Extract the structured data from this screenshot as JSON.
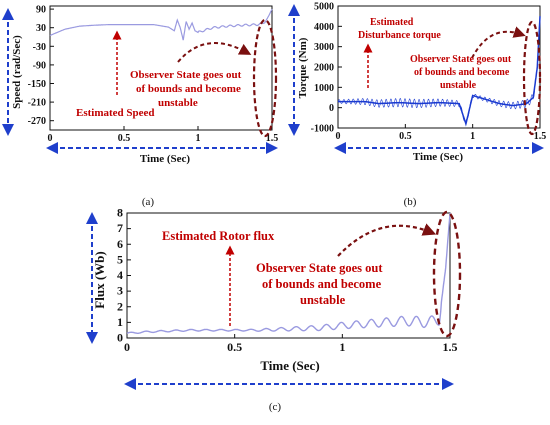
{
  "chart_data": [
    {
      "type": "line",
      "panel": "(a)",
      "xlabel": "Time (Sec)",
      "ylabel": "Speed (rad/Sec)",
      "xlim": [
        0,
        1.5
      ],
      "ylim": [
        -300,
        100
      ],
      "x_ticks": [
        "0",
        "0.5",
        "1",
        "1.5"
      ],
      "y_ticks": [
        "90",
        "30",
        "-30",
        "-90",
        "-150",
        "-210",
        "-270"
      ],
      "annotations": [
        "Estimated Speed",
        "Observer State  goes out of bounds and become unstable"
      ],
      "series": [
        {
          "color": "#9a9ae0",
          "x": [
            0,
            0.1,
            0.2,
            0.3,
            0.4,
            0.5,
            0.6,
            0.7,
            0.8,
            0.84,
            0.86,
            0.88,
            0.9,
            0.92,
            0.94,
            0.96,
            0.98,
            1.0,
            1.1,
            1.2,
            1.3,
            1.4,
            1.45,
            1.48,
            1.5
          ],
          "y": [
            5,
            25,
            35,
            38,
            40,
            40,
            40,
            40,
            32,
            20,
            55,
            30,
            -10,
            50,
            25,
            45,
            20,
            15,
            30,
            35,
            38,
            40,
            45,
            70,
            90
          ]
        }
      ]
    },
    {
      "type": "line",
      "panel": "(b)",
      "xlabel": "Time (Sec)",
      "ylabel": "Torque (Nm)",
      "xlim": [
        0,
        1.5
      ],
      "ylim": [
        -1000,
        5000
      ],
      "x_ticks": [
        "0",
        "0.5",
        "1",
        "1.5"
      ],
      "y_ticks": [
        "5000",
        "4000",
        "3000",
        "2000",
        "1000",
        "0",
        "-1000"
      ],
      "annotations": [
        "Estimated Disturbance torque",
        "Observer State  goes out of bounds and become unstable"
      ],
      "series": [
        {
          "color": "#1a3ad0",
          "x": [
            0,
            0.2,
            0.3,
            0.45,
            0.6,
            0.75,
            0.9,
            0.95,
            1.0,
            1.1,
            1.2,
            1.3,
            1.4,
            1.45,
            1.48,
            1.5
          ],
          "y": [
            300,
            300,
            200,
            250,
            200,
            250,
            200,
            -800,
            600,
            400,
            200,
            100,
            200,
            500,
            2000,
            4500
          ],
          "oscillation_band": [
            -150,
            150
          ]
        }
      ]
    },
    {
      "type": "line",
      "panel": "(c)",
      "xlabel": "Time (Sec)",
      "ylabel": "Flux (Wb)",
      "xlim": [
        0,
        1.5
      ],
      "ylim": [
        0,
        8
      ],
      "x_ticks": [
        "0",
        "0.5",
        "1",
        "1.5"
      ],
      "y_ticks": [
        "8",
        "7",
        "6",
        "5",
        "4",
        "3",
        "2",
        "1",
        "0"
      ],
      "annotations": [
        "Estimated Rotor flux",
        "Observer State  goes out of bounds and become unstable"
      ],
      "series": [
        {
          "color": "#9a9ae0",
          "x": [
            0,
            0.1,
            0.2,
            0.3,
            0.4,
            0.5,
            0.6,
            0.7,
            0.8,
            0.9,
            1.0,
            1.1,
            1.2,
            1.3,
            1.4,
            1.45,
            1.48,
            1.5
          ],
          "y": [
            0.3,
            0.4,
            0.45,
            0.5,
            0.5,
            0.5,
            0.5,
            0.55,
            0.6,
            0.65,
            0.8,
            0.9,
            1.0,
            1.1,
            1.0,
            1.2,
            4.5,
            8.0
          ]
        }
      ]
    }
  ],
  "colors": {
    "annotation": "#c00000",
    "axis_arrow": "#1f3fcc",
    "instability_ellipse": "#7a1010"
  }
}
